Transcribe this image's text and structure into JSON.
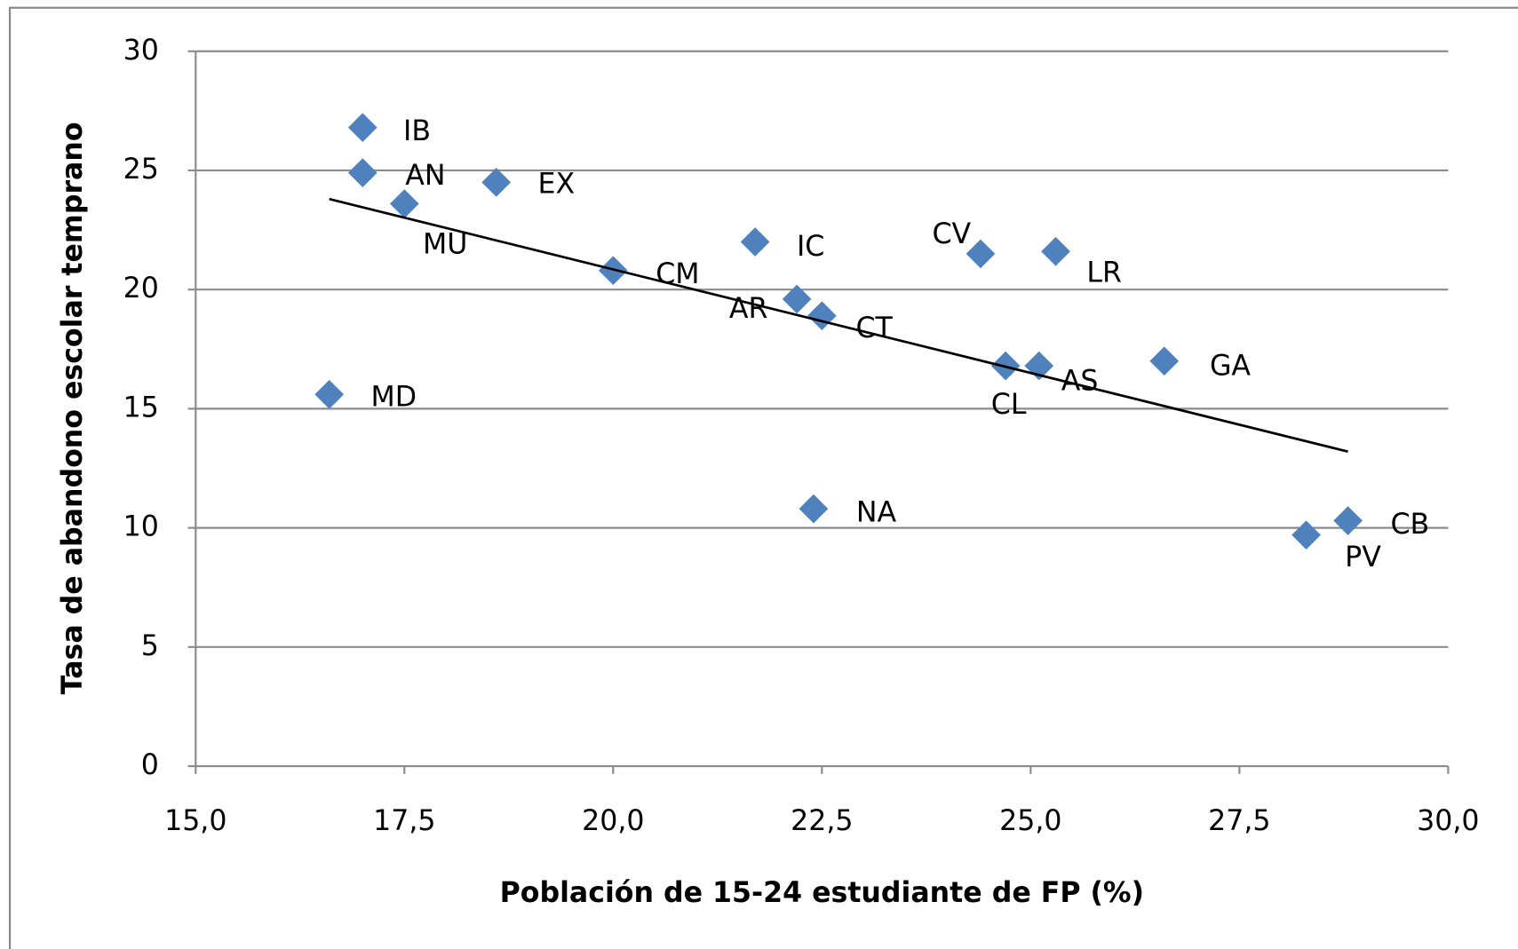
{
  "chart_data": {
    "type": "scatter",
    "xlabel": "Población de 15-24 estudiante de FP (%)",
    "ylabel": "Tasa de abandono escolar temprano",
    "point_labels": [
      "IB",
      "AN",
      "MU",
      "EX",
      "CM",
      "IC",
      "AR",
      "CT",
      "CV",
      "LR",
      "CL",
      "AS",
      "GA",
      "MD",
      "NA",
      "PV",
      "CB"
    ],
    "x": [
      17.0,
      17.0,
      17.5,
      18.6,
      20.0,
      21.7,
      22.2,
      22.5,
      24.4,
      25.3,
      24.7,
      25.1,
      26.6,
      16.6,
      22.4,
      28.3,
      28.8
    ],
    "values": [
      26.8,
      24.9,
      23.6,
      24.5,
      20.8,
      22.0,
      19.6,
      18.9,
      21.5,
      21.6,
      16.8,
      16.8,
      17.0,
      15.6,
      10.8,
      9.7,
      10.3
    ],
    "color": "#4f81bd",
    "trendline": {
      "x": [
        16.6,
        28.8
      ],
      "y": [
        23.8,
        13.2
      ],
      "color": "#000000"
    },
    "xlim": [
      15,
      30
    ],
    "xticks": [
      {
        "value": 15,
        "label": "15,0"
      },
      {
        "value": 17.5,
        "label": "17,5"
      },
      {
        "value": 20,
        "label": "20,0"
      },
      {
        "value": 22.5,
        "label": "22,5"
      },
      {
        "value": 25,
        "label": "25,0"
      },
      {
        "value": 27.5,
        "label": "27,5"
      },
      {
        "value": 30,
        "label": "30,0"
      }
    ],
    "ylim": [
      0,
      30
    ],
    "yticks": [
      0,
      5,
      10,
      15,
      20,
      25,
      30
    ],
    "grid": true
  }
}
